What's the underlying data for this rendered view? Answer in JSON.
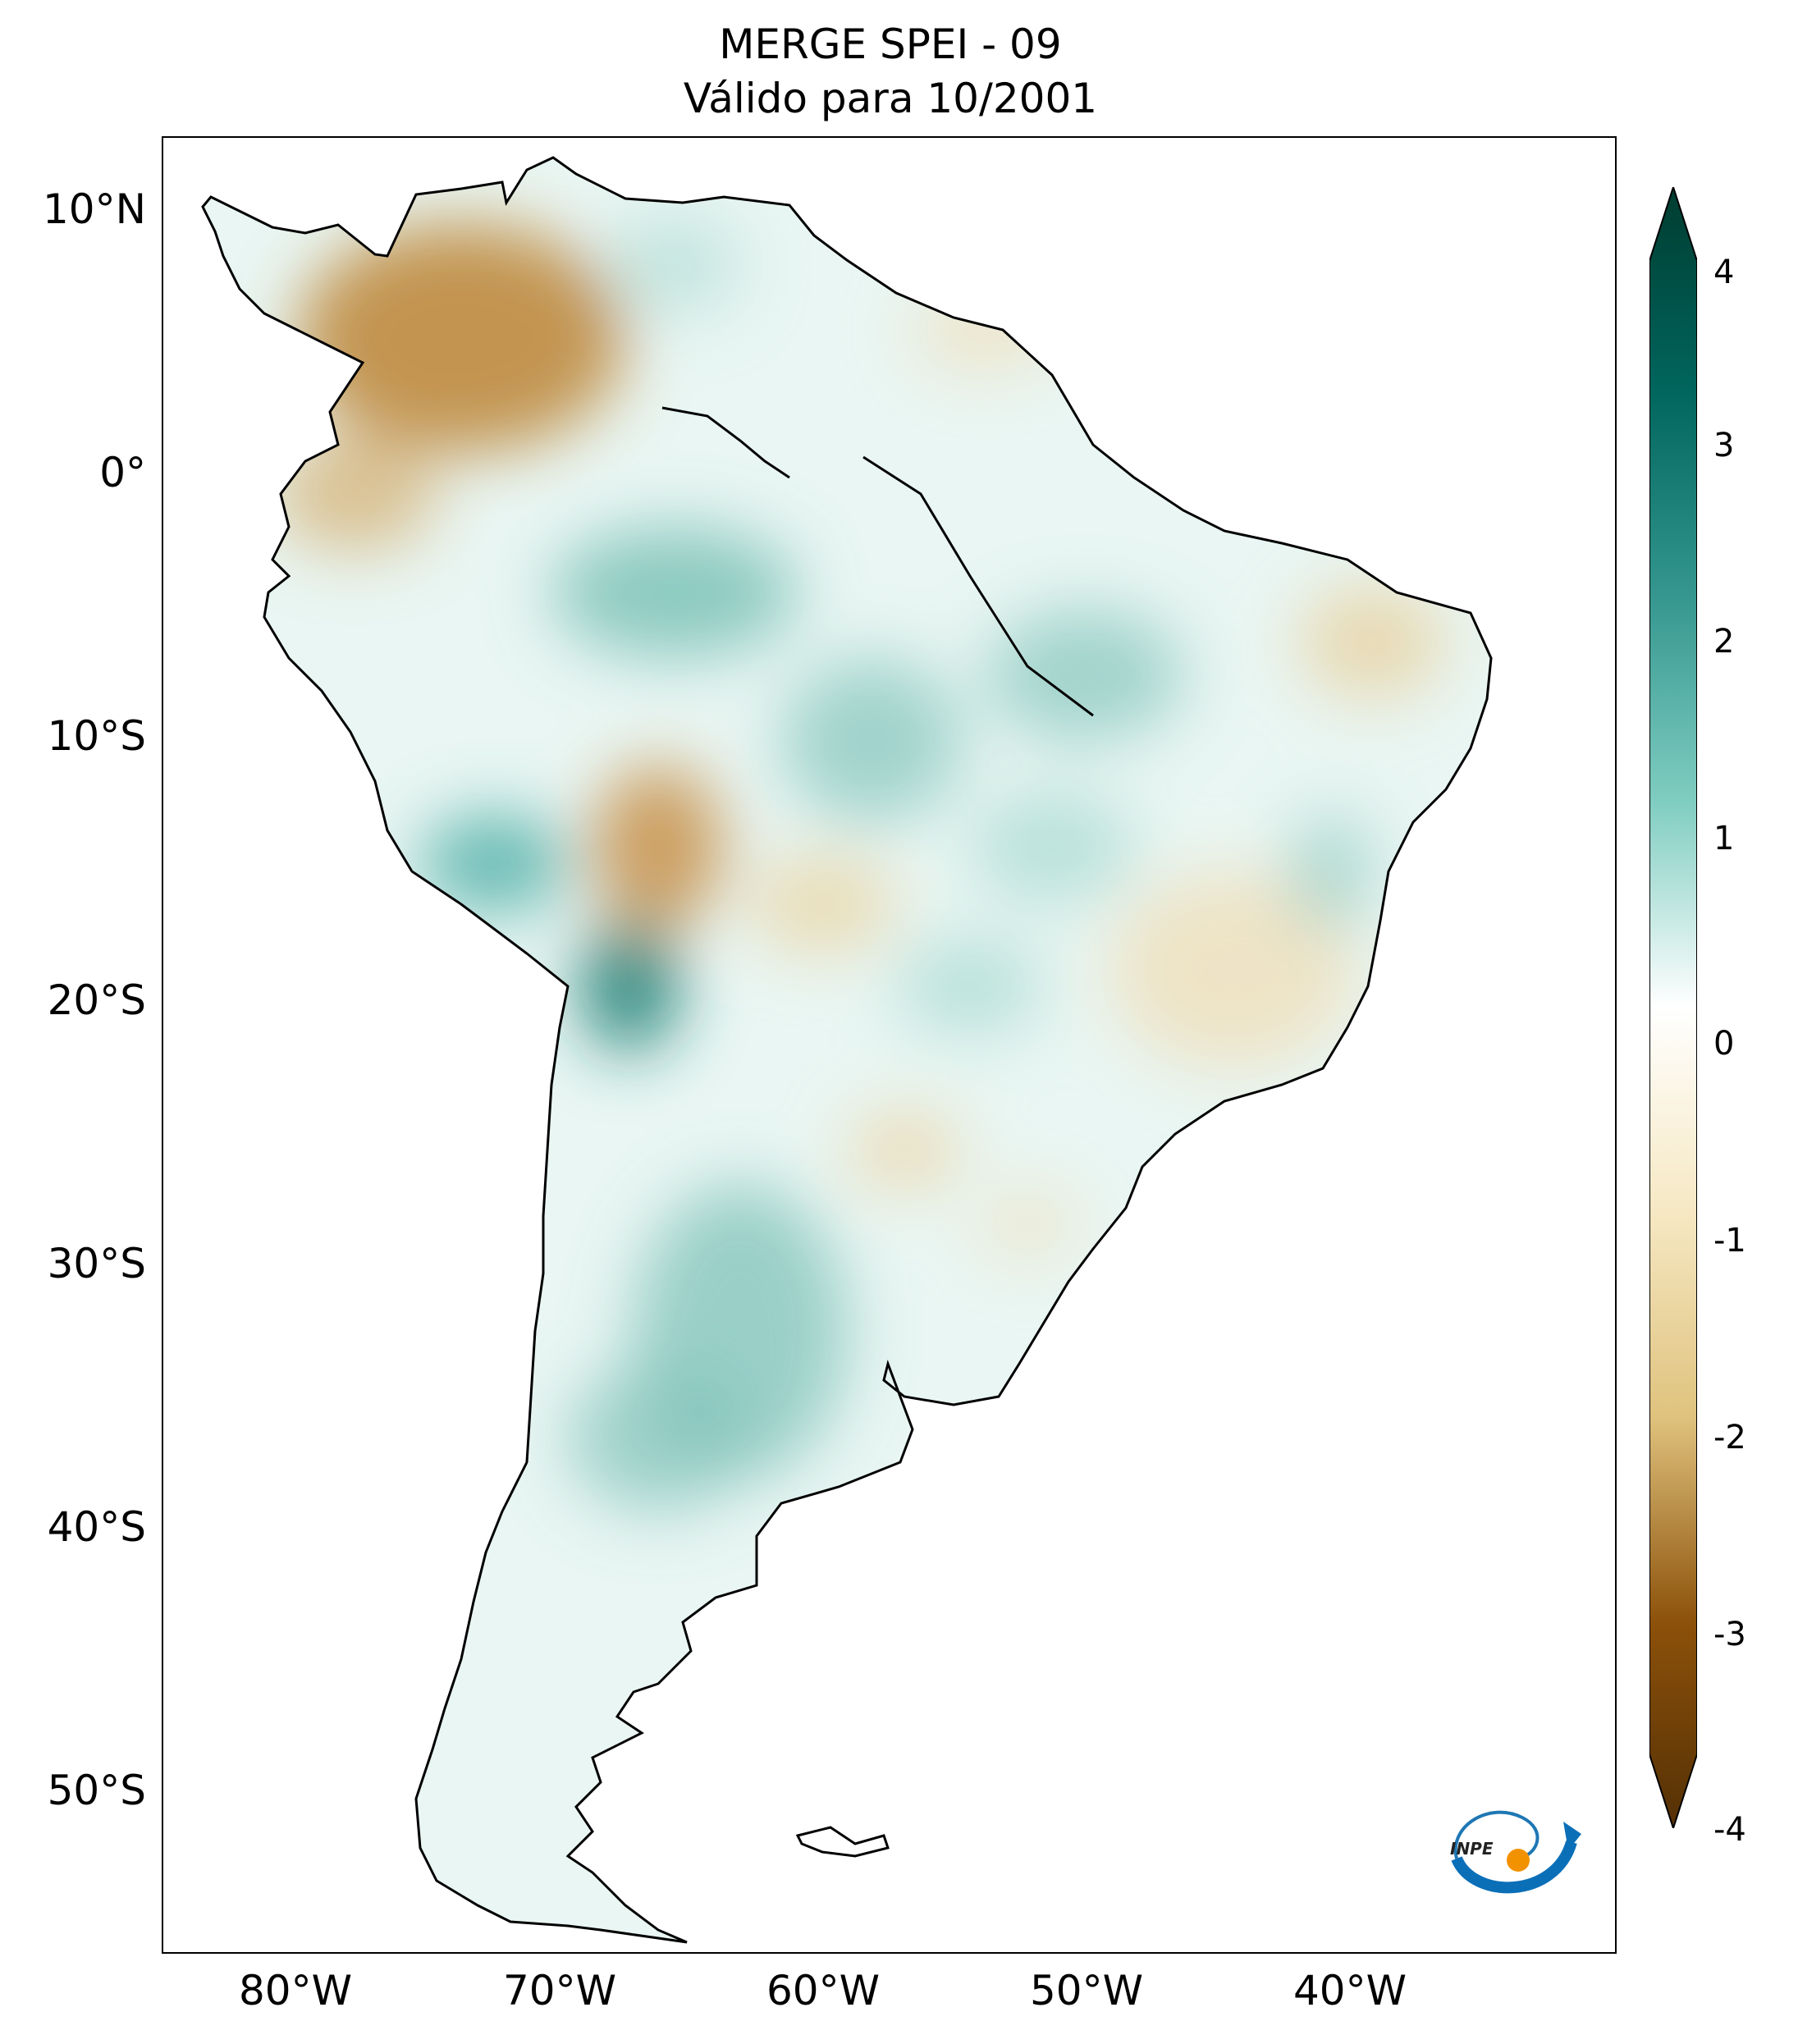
{
  "title": {
    "line1": "MERGE   SPEI - 09",
    "line2": "Válido para 10/2001"
  },
  "map": {
    "lat_ticks": [
      "10°N",
      "0°",
      "10°S",
      "20°S",
      "30°S",
      "40°S",
      "50°S"
    ],
    "lon_ticks": [
      "80°W",
      "70°W",
      "60°W",
      "50°W",
      "40°W"
    ],
    "extent": {
      "lon_min": -85,
      "lon_max": -30,
      "lat_min": -56,
      "lat_max": 13
    }
  },
  "colorbar": {
    "ticks": [
      "4",
      "3",
      "2",
      "1",
      "0",
      "-1",
      "-2",
      "-3",
      "-4"
    ],
    "min": -4,
    "max": 4,
    "colors": {
      "neg_4": "#543005",
      "neg_3": "#8c510a",
      "neg_2": "#bf812d",
      "neg_1": "#f6e8c3",
      "zero": "#ffffff",
      "pos_1": "#c7eae5",
      "pos_2": "#5ab4ac",
      "pos_3": "#01665e",
      "pos_4": "#003c30"
    }
  },
  "logo": {
    "text": "INPE"
  }
}
